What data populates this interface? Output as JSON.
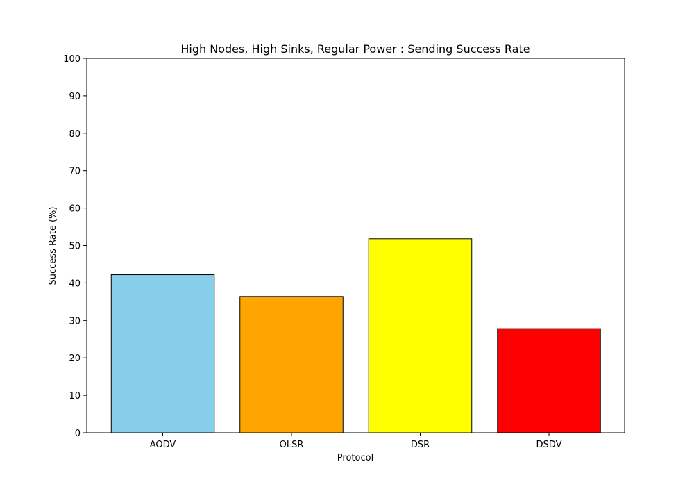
{
  "chart_data": {
    "type": "bar",
    "title": "High Nodes, High Sinks, Regular Power : Sending Success Rate",
    "xlabel": "Protocol",
    "ylabel": "Success Rate (%)",
    "categories": [
      "AODV",
      "OLSR",
      "DSR",
      "DSDV"
    ],
    "values": [
      42.2,
      36.4,
      51.8,
      27.8
    ],
    "colors": [
      "#87ceeb",
      "#ffa500",
      "#ffff00",
      "#ff0000"
    ],
    "edge_color": "#000000",
    "ylim": [
      0,
      100
    ],
    "yticks": [
      0,
      10,
      20,
      30,
      40,
      50,
      60,
      70,
      80,
      90,
      100
    ],
    "grid": false,
    "legend": "none"
  }
}
